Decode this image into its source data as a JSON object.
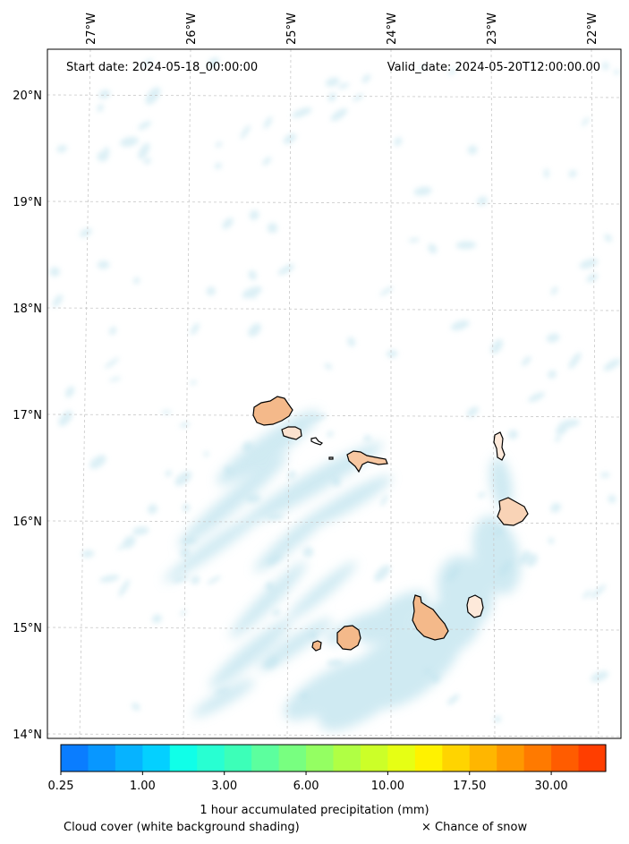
{
  "header": {
    "start_date": "Start date: 2024-05-18_00:00:00",
    "valid_date": "Valid_date: 2024-05-20T12:00:00.00"
  },
  "map": {
    "lon_labels": [
      "27°W",
      "26°W",
      "25°W",
      "24°W",
      "23°W",
      "22°W"
    ],
    "lat_labels": [
      "20°N",
      "19°N",
      "18°N",
      "17°N",
      "16°N",
      "15°N",
      "14°N"
    ],
    "grid": true,
    "land_color": "#f4b98a",
    "cloud_color": "#bfe3ee",
    "coast_color": "#000000"
  },
  "colorbar": {
    "colors": [
      "#0a7dff",
      "#0897ff",
      "#06b3ff",
      "#04d0ff",
      "#10ffe8",
      "#28ffd2",
      "#3cffb8",
      "#5cff9e",
      "#78ff80",
      "#94ff62",
      "#b0ff44",
      "#ccff28",
      "#e6ff14",
      "#fff200",
      "#ffd400",
      "#ffb600",
      "#ff9800",
      "#ff7a00",
      "#ff5c00",
      "#ff3e00"
    ],
    "tick_labels": [
      "0.25",
      "1.00",
      "3.00",
      "6.00",
      "10.00",
      "17.50",
      "30.00"
    ],
    "label": "1 hour accumulated precipitation (mm)"
  },
  "legend": {
    "cloud_note": "Cloud cover (white background shading)",
    "snow_note": "× Chance of snow"
  }
}
